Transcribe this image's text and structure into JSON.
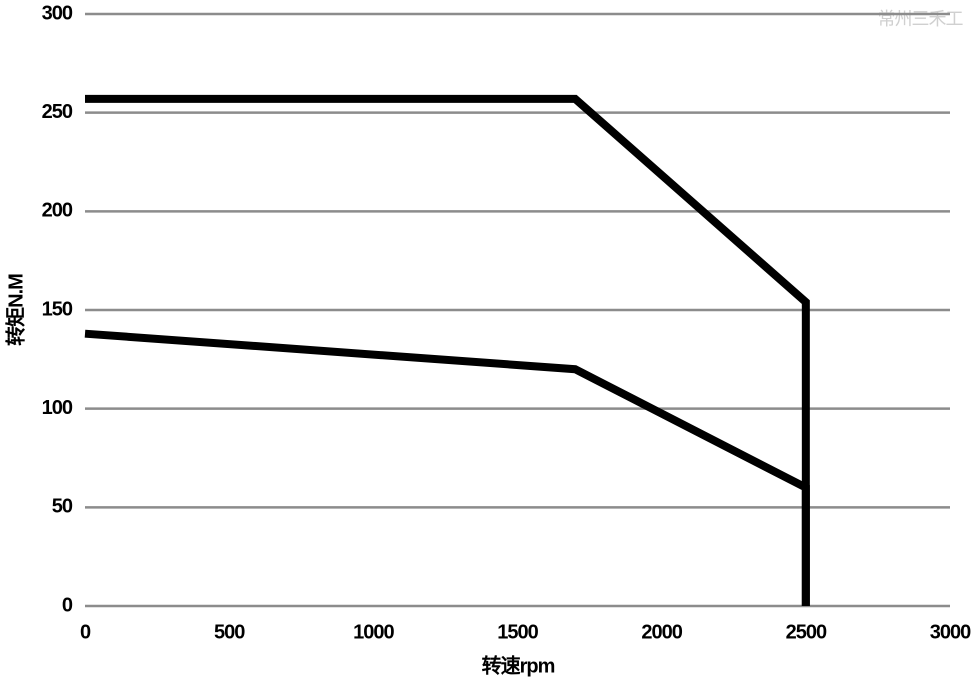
{
  "chart_data": {
    "type": "line",
    "xlabel": "转速rpm",
    "ylabel": "转矩N.M",
    "watermark": "常州三禾工",
    "xlim": [
      0,
      3000
    ],
    "xticks": [
      0,
      500,
      1000,
      1500,
      2000,
      2500,
      3000
    ],
    "ylim": [
      0,
      300
    ],
    "yticks": [
      0,
      50,
      100,
      150,
      200,
      250,
      300
    ],
    "grid": true,
    "series": [
      {
        "color": "#000000",
        "x": [
          0,
          1700,
          2500,
          2500
        ],
        "values": [
          257,
          257,
          154,
          0
        ]
      },
      {
        "color": "#000000",
        "x": [
          0,
          1700,
          2500,
          2500
        ],
        "values": [
          138,
          120,
          60,
          0
        ]
      }
    ]
  }
}
